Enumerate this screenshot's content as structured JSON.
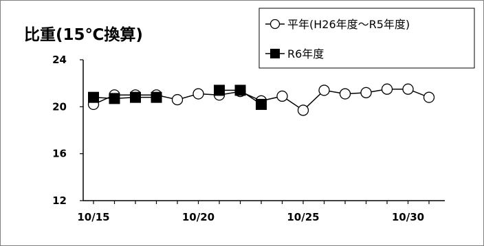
{
  "chart_data": {
    "type": "line",
    "title": "比重(15℃換算)",
    "x": [
      "10/15",
      "10/16",
      "10/17",
      "10/18",
      "10/19",
      "10/20",
      "10/21",
      "10/22",
      "10/23",
      "10/24",
      "10/25",
      "10/26",
      "10/27",
      "10/28",
      "10/29",
      "10/30",
      "10/31"
    ],
    "x_tick_labels": [
      "10/15",
      "10/20",
      "10/25",
      "10/30"
    ],
    "ylim": [
      12,
      24
    ],
    "y_ticks": [
      12,
      16,
      20,
      24
    ],
    "grid": false,
    "legend_position": "top-right",
    "series": [
      {
        "name": "平年(H26年度～R5年度)",
        "marker": "open-circle",
        "color": "#000000",
        "values": [
          20.2,
          21.0,
          21.0,
          21.0,
          20.6,
          21.1,
          21.0,
          21.3,
          20.5,
          20.9,
          19.7,
          21.4,
          21.1,
          21.2,
          21.5,
          21.5,
          20.8
        ]
      },
      {
        "name": "R6年度",
        "marker": "filled-square",
        "color": "#000000",
        "values": [
          20.8,
          20.7,
          20.8,
          20.8,
          null,
          null,
          21.4,
          21.4,
          20.2,
          null,
          null,
          null,
          null,
          null,
          null,
          null,
          null
        ]
      }
    ]
  }
}
